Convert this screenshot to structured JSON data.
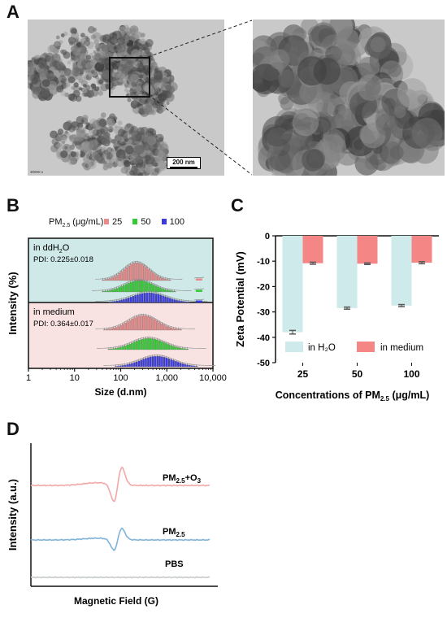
{
  "panels": {
    "A": {
      "letter": "A",
      "scale_bar": "200 nm",
      "magnification": "30000 x"
    },
    "B": {
      "letter": "B",
      "legend_title": "PM",
      "legend_title_sub": "2.5",
      "legend_title_unit": " (μg/mL):",
      "legend_labels": [
        "25",
        "50",
        "100"
      ],
      "legend_colors": [
        "#e88a8a",
        "#33cc33",
        "#3a3ae0"
      ],
      "top_bg": "#cfe8e8",
      "bottom_bg": "#f9e2e2",
      "top_label_prefix": "in ddH",
      "top_label_sub": "2",
      "top_label_suffix": "O",
      "top_pdi": "PDI: 0.225±0.018",
      "bottom_label": "in medium",
      "bottom_pdi": "PDI: 0.364±0.017",
      "ylabel": "Intensity (%)",
      "xlabel": "Size (d.nm)",
      "xticks": [
        "1",
        "10",
        "100",
        "1,000",
        "10,000"
      ]
    },
    "C": {
      "letter": "C",
      "ylabel": "Zeta Potential (mV)",
      "xlabel_prefix": "Concentrations of PM",
      "xlabel_sub": "2.5",
      "xlabel_suffix": " (μg/mL)",
      "legend": [
        "in H₂O",
        "in medium"
      ],
      "colors": {
        "in_h2o": "#cfeaea",
        "in_medium": "#f48686"
      }
    },
    "D": {
      "letter": "D",
      "ylabel": "Intensity (a.u.)",
      "xlabel": "Magnetic  Field (G)",
      "trace_labels": [
        {
          "main": "PM",
          "sub": "2.5",
          "suffix": "+O",
          "suffix_sub": "3"
        },
        {
          "main": "PM",
          "sub": "2.5",
          "suffix": "",
          "suffix_sub": ""
        },
        {
          "main": "PBS",
          "sub": "",
          "suffix": "",
          "suffix_sub": ""
        }
      ],
      "trace_colors": [
        "#f2a8a8",
        "#7fb3d8",
        "#c8cccc"
      ]
    }
  },
  "chart_data": [
    {
      "type": "bar",
      "title": "",
      "xlabel": "Concentrations of PM2.5 (μg/mL)",
      "ylabel": "Zeta Potential (mV)",
      "categories": [
        "25",
        "50",
        "100"
      ],
      "ylim": [
        -50,
        0
      ],
      "yticks": [
        0,
        -10,
        -20,
        -30,
        -40,
        -50
      ],
      "series": [
        {
          "name": "in H₂O",
          "values": [
            -38,
            -28.5,
            -27.5
          ],
          "errors": [
            0.7,
            0.4,
            0.4
          ]
        },
        {
          "name": "in medium",
          "values": [
            -10.8,
            -11.0,
            -10.6
          ],
          "errors": [
            0.4,
            0.3,
            0.4
          ]
        }
      ],
      "legend_position": "bottom"
    },
    {
      "type": "bar",
      "title": "",
      "xlabel": "Size (d.nm)",
      "ylabel": "Intensity (%)",
      "x_scale": "log",
      "xlim": [
        1,
        10000
      ],
      "xticks": [
        1,
        10,
        100,
        1000,
        10000
      ],
      "legend_position": "top",
      "series": [
        {
          "name": "25",
          "group": "in ddH2O",
          "peak_size": 220,
          "secondary_peak_size": 5000
        },
        {
          "name": "50",
          "group": "in ddH2O",
          "peak_size": 250,
          "secondary_peak_size": 5000
        },
        {
          "name": "100",
          "group": "in ddH2O",
          "peak_size": 400,
          "secondary_peak_size": 5000
        },
        {
          "name": "25",
          "group": "in medium",
          "peak_size": 300
        },
        {
          "name": "50",
          "group": "in medium",
          "peak_size": 400
        },
        {
          "name": "100",
          "group": "in medium",
          "peak_size": 600
        }
      ]
    }
  ]
}
